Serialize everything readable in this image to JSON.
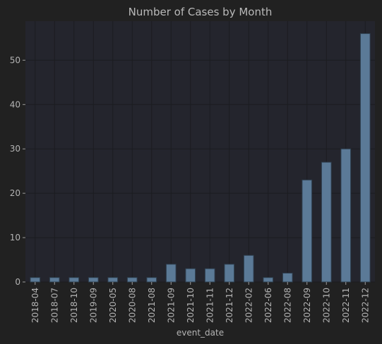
{
  "chart_data": {
    "type": "bar",
    "title": "Number of Cases by Month",
    "xlabel": "event_date",
    "ylabel": "",
    "categories": [
      "2018-04",
      "2018-07",
      "2018-10",
      "2019-09",
      "2020-05",
      "2020-08",
      "2021-08",
      "2021-09",
      "2021-10",
      "2021-11",
      "2021-12",
      "2022-02",
      "2022-06",
      "2022-08",
      "2022-09",
      "2022-10",
      "2022-11",
      "2022-12"
    ],
    "values": [
      1,
      1,
      1,
      1,
      1,
      1,
      1,
      4,
      3,
      3,
      4,
      6,
      1,
      2,
      23,
      27,
      30,
      56
    ],
    "ylim": [
      0,
      58.8
    ],
    "yticks": [
      0,
      10,
      20,
      30,
      40,
      50
    ],
    "grid": true,
    "colors": {
      "background": "#212121",
      "plot_area": "#24252d",
      "bar": "#5b7a97",
      "text": "#b4b4b4"
    }
  }
}
